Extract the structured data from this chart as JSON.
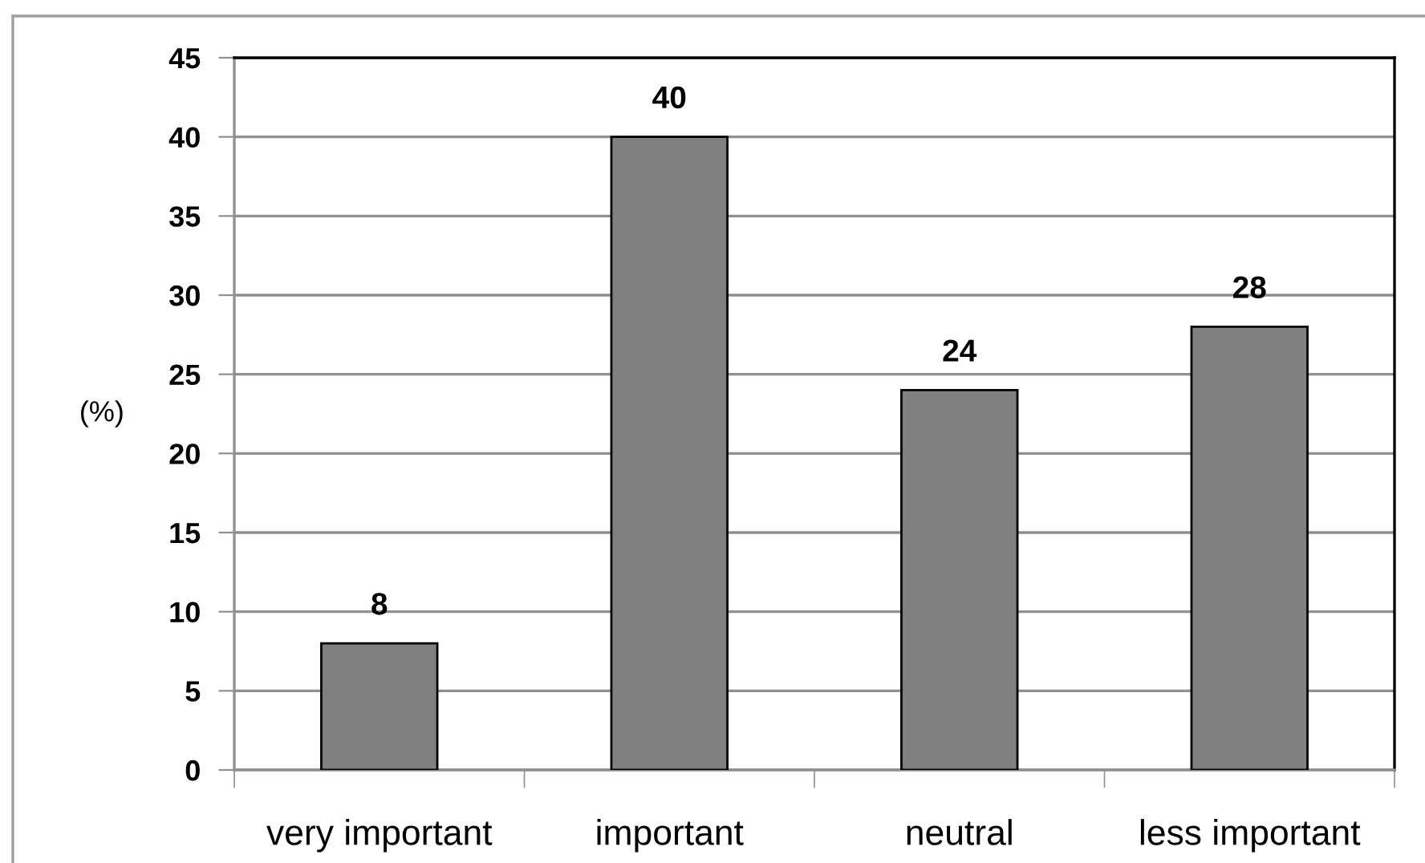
{
  "chart_data": {
    "type": "bar",
    "categories": [
      "very important",
      "important",
      "neutral",
      "less important"
    ],
    "values": [
      8,
      40,
      24,
      28
    ],
    "color": "#808080",
    "ylabel": "(%)",
    "ylim": [
      0,
      45
    ],
    "yticks": [
      0,
      5,
      10,
      15,
      20,
      25,
      30,
      35,
      40,
      45
    ],
    "grid": "y",
    "data_labels": true
  }
}
